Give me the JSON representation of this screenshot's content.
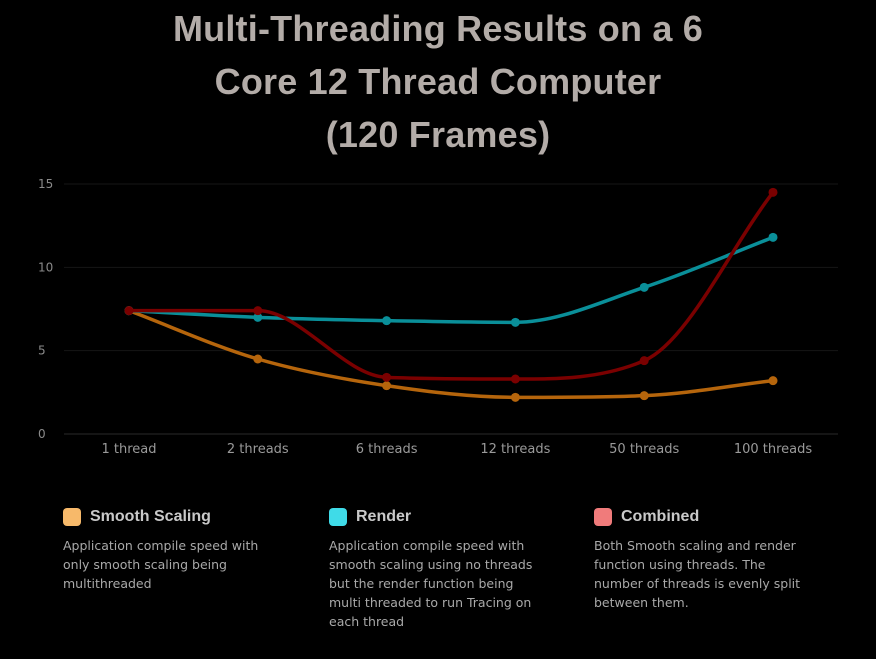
{
  "title_lines": [
    "Multi-Threading Results on a 6",
    "Core 12 Thread Computer",
    "(120 Frames)"
  ],
  "chart_data": {
    "type": "line",
    "title": "Multi-Threading Results on a 6 Core 12 Thread Computer (120 Frames)",
    "categories": [
      "1 thread",
      "2 threads",
      "6 threads",
      "12 threads",
      "50 threads",
      "100 threads"
    ],
    "ylim": [
      0,
      15
    ],
    "yticks": [
      0,
      5,
      10,
      15
    ],
    "grid": true,
    "series": [
      {
        "name": "Smooth Scaling",
        "color": "#b5650c",
        "values": [
          7.4,
          4.5,
          2.9,
          2.2,
          2.3,
          3.2
        ]
      },
      {
        "name": "Render",
        "color": "#0a8f99",
        "values": [
          7.4,
          7.0,
          6.8,
          6.7,
          8.8,
          11.8
        ]
      },
      {
        "name": "Combined",
        "color": "#7a0000",
        "values": [
          7.4,
          7.4,
          3.4,
          3.3,
          4.4,
          14.5
        ]
      }
    ]
  },
  "legend": [
    {
      "name": "Smooth Scaling",
      "swatch": "#f7b96a",
      "desc": "Application compile speed with only smooth scaling being multithreaded"
    },
    {
      "name": "Render",
      "swatch": "#3fdbe8",
      "desc": "Application compile speed with smooth scaling using no threads but the render function being multi threaded to run Tracing on each thread"
    },
    {
      "name": "Combined",
      "swatch": "#f07b7b",
      "desc": "Both Smooth scaling and render function using threads. The number of threads is evenly split between them."
    }
  ]
}
